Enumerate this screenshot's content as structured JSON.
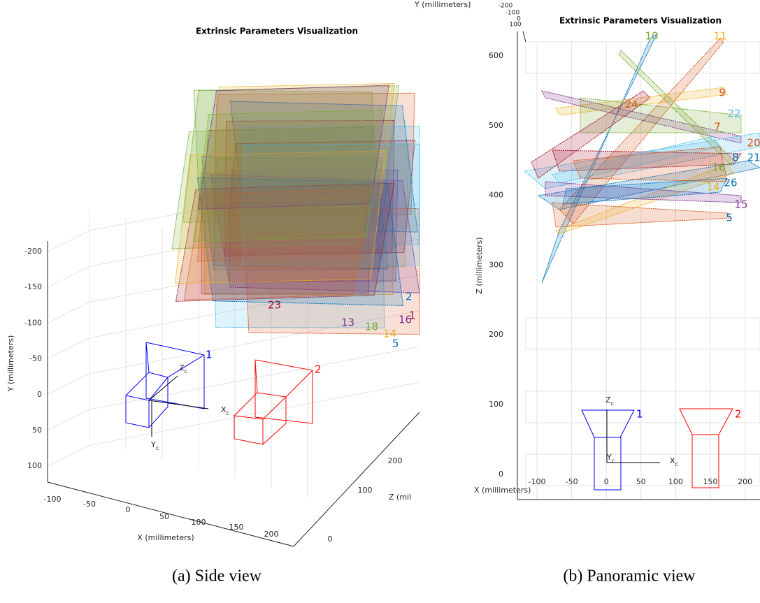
{
  "figure": {
    "panels": [
      {
        "title": "Extrinsic Parameters Visualization",
        "caption": "(a) Side view",
        "x_label": "X (millimeters)",
        "y_label": "Y (millimeters)",
        "z_label": "Z (mil",
        "x_ticks": [
          "-100",
          "-50",
          "0",
          "50",
          "100",
          "150",
          "200"
        ],
        "y_ticks": [
          "-200",
          "-150",
          "-100",
          "-50",
          "0",
          "50",
          "100"
        ],
        "z_ticks": [
          "0",
          "100",
          "200"
        ],
        "camera_axes": {
          "z": "Z",
          "x": "X",
          "y": "Y",
          "sub": "c"
        },
        "camera_labels": [
          "1",
          "2"
        ],
        "plane_labels": [
          "23",
          "13",
          "18",
          "14",
          "5",
          "16",
          "2",
          "1"
        ]
      },
      {
        "title": "Extrinsic Parameters Visualization",
        "caption": "(b) Panoramic view",
        "x_label": "X (millimeters)",
        "y_label": "Y (millimeters)",
        "z_label": "Z (millimeters)",
        "x_ticks": [
          "-100",
          "-50",
          "0",
          "50",
          "100",
          "150",
          "200"
        ],
        "y_ticks": [
          "-200",
          "-100",
          "0",
          "100"
        ],
        "z_ticks": [
          "600",
          "500",
          "400",
          "300",
          "200",
          "100",
          "0"
        ],
        "camera_axes": {
          "z": "Z",
          "x": "X",
          "y": "Y",
          "sub": "c"
        },
        "camera_labels": [
          "1",
          "2"
        ],
        "plane_labels": [
          "10",
          "11",
          "9",
          "24",
          "22",
          "7",
          "20",
          "8",
          "21",
          "16",
          "26",
          "14",
          "15",
          "5"
        ]
      }
    ]
  }
}
